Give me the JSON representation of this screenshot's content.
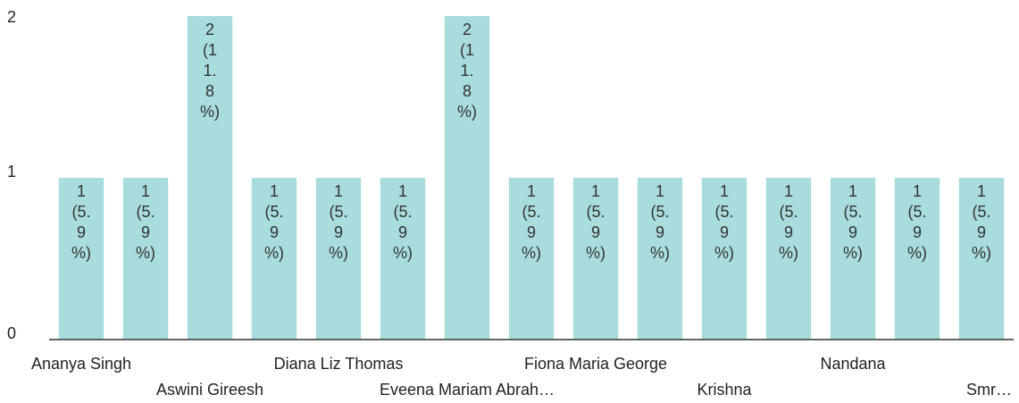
{
  "chart_data": {
    "type": "bar",
    "categories": [
      "Ananya Singh",
      null,
      "Aswini Gireesh",
      null,
      "Diana Liz Thomas",
      null,
      "Eveena Mariam Abrah…",
      null,
      "Fiona Maria George",
      null,
      "Krishna",
      null,
      "Nandana",
      null,
      "Smr…"
    ],
    "values": [
      1,
      1,
      2,
      1,
      1,
      1,
      2,
      1,
      1,
      1,
      1,
      1,
      1,
      1,
      1
    ],
    "value_labels": [
      "1 (5.9%)",
      "1 (5.9%)",
      "2 (11.8%)",
      "1 (5.9%)",
      "1 (5.9%)",
      "1 (5.9%)",
      "2 (11.8%)",
      "1 (5.9%)",
      "1 (5.9%)",
      "1 (5.9%)",
      "1 (5.9%)",
      "1 (5.9%)",
      "1 (5.9%)",
      "1 (5.9%)",
      "1 (5.9%)"
    ],
    "color": "#a9dcdc",
    "ylim": [
      0,
      2
    ],
    "yticks": [
      0,
      1,
      2
    ],
    "grid": false
  }
}
